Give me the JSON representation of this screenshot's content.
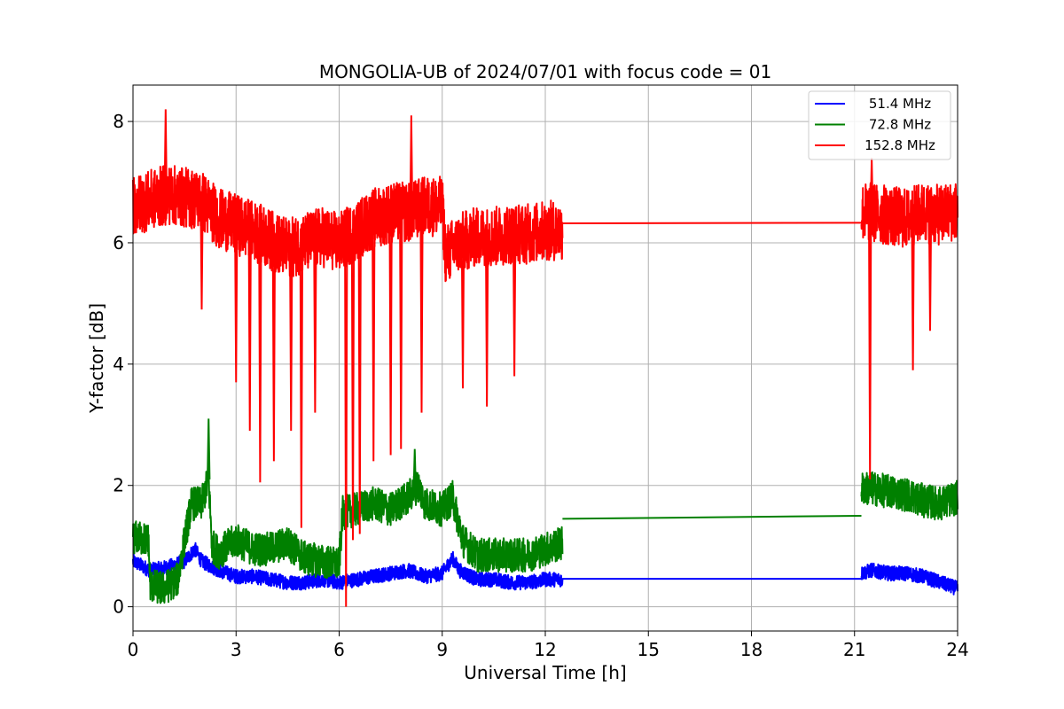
{
  "chart_data": {
    "type": "line",
    "title": "MONGOLIA-UB of 2024/07/01 with focus code = 01",
    "xlabel": "Universal Time [h]",
    "ylabel": "Y-factor [dB]",
    "xlim": [
      0,
      24
    ],
    "ylim": [
      -0.4,
      8.6
    ],
    "xticks": [
      0,
      3,
      6,
      9,
      12,
      15,
      18,
      21,
      24
    ],
    "yticks": [
      0,
      2,
      4,
      6,
      8
    ],
    "grid": true,
    "legend_position": "top-right",
    "series": [
      {
        "name": "51.4 MHz",
        "color": "#0000ff",
        "segments": [
          {
            "x": [
              0,
              0.5,
              1,
              1.5,
              1.8,
              2,
              2.5,
              3,
              3.5,
              4,
              4.5,
              5,
              5.5,
              6,
              6.5,
              7,
              7.5,
              8,
              8.5,
              9,
              9.3,
              9.5,
              10,
              10.5,
              11,
              11.5,
              12,
              12.5
            ],
            "y": [
              0.75,
              0.6,
              0.65,
              0.75,
              0.95,
              0.75,
              0.6,
              0.5,
              0.5,
              0.45,
              0.4,
              0.4,
              0.45,
              0.4,
              0.45,
              0.5,
              0.55,
              0.6,
              0.5,
              0.55,
              0.8,
              0.6,
              0.45,
              0.45,
              0.4,
              0.4,
              0.45,
              0.45
            ]
          },
          {
            "x": [
              12.5,
              21.2
            ],
            "y": [
              0.46,
              0.46
            ]
          },
          {
            "x": [
              21.2,
              21.5,
              22,
              22.5,
              23,
              23.5,
              24
            ],
            "y": [
              0.55,
              0.6,
              0.55,
              0.55,
              0.5,
              0.4,
              0.3
            ]
          }
        ],
        "noise": 0.12
      },
      {
        "name": "72.8 MHz",
        "color": "#008000",
        "segments": [
          {
            "x": [
              0,
              0.45,
              0.5,
              0.9,
              1.3,
              1.5,
              1.7,
              2.0,
              2.2,
              2.3,
              2.5,
              3,
              3.5,
              4,
              4.5,
              5,
              5.5,
              6,
              6.1,
              6.5,
              7,
              7.5,
              8,
              8.3,
              8.5,
              9,
              9.3,
              9.6,
              10,
              10.5,
              11,
              11.5,
              12,
              12.5
            ],
            "y": [
              1.15,
              1.1,
              0.35,
              0.3,
              0.45,
              1.1,
              1.7,
              1.7,
              2.1,
              1.0,
              0.9,
              1.1,
              0.95,
              0.95,
              1.05,
              0.8,
              0.75,
              0.7,
              1.55,
              1.6,
              1.7,
              1.6,
              1.8,
              2.0,
              1.7,
              1.6,
              1.8,
              1.1,
              0.85,
              0.85,
              0.85,
              0.85,
              0.95,
              1.05
            ]
          },
          {
            "x": [
              12.5,
              21.2
            ],
            "y": [
              1.45,
              1.5
            ]
          },
          {
            "x": [
              21.2,
              21.5,
              22,
              22.5,
              23,
              23.5,
              24
            ],
            "y": [
              1.95,
              1.95,
              1.9,
              1.85,
              1.75,
              1.7,
              1.8
            ]
          }
        ],
        "noise": 0.28,
        "spikes": [
          {
            "x": 2.2,
            "y": 3.1
          },
          {
            "x": 8.2,
            "y": 2.6
          },
          {
            "x": 0.8,
            "y": 0.05
          }
        ]
      },
      {
        "name": "152.8 MHz",
        "color": "#ff0000",
        "segments": [
          {
            "x": [
              0,
              0.5,
              1,
              1.5,
              2,
              2.5,
              3,
              3.5,
              4,
              4.5,
              5,
              5.5,
              6,
              6.5,
              7,
              7.5,
              8,
              8.5,
              9,
              9.1,
              9.5,
              10,
              10.5,
              11,
              11.5,
              12,
              12.5
            ],
            "y": [
              6.6,
              6.7,
              6.8,
              6.75,
              6.7,
              6.4,
              6.3,
              6.2,
              6.05,
              5.9,
              6.0,
              6.1,
              6.0,
              6.2,
              6.4,
              6.5,
              6.5,
              6.6,
              6.6,
              5.8,
              6.0,
              6.1,
              6.1,
              6.15,
              6.15,
              6.2,
              6.2
            ]
          },
          {
            "x": [
              12.5,
              21.2
            ],
            "y": [
              6.32,
              6.33
            ]
          },
          {
            "x": [
              21.2,
              21.5,
              22,
              22.5,
              23,
              23.5,
              24
            ],
            "y": [
              6.5,
              6.5,
              6.45,
              6.4,
              6.5,
              6.45,
              6.55
            ]
          }
        ],
        "noise": 0.5,
        "spikes": [
          {
            "x": 0.95,
            "y": 8.2
          },
          {
            "x": 2.0,
            "y": 4.9
          },
          {
            "x": 3.0,
            "y": 3.7
          },
          {
            "x": 3.4,
            "y": 2.9
          },
          {
            "x": 3.7,
            "y": 2.05
          },
          {
            "x": 4.1,
            "y": 2.4
          },
          {
            "x": 4.6,
            "y": 2.9
          },
          {
            "x": 4.9,
            "y": 1.3
          },
          {
            "x": 5.3,
            "y": 3.2
          },
          {
            "x": 6.2,
            "y": 0.0
          },
          {
            "x": 6.4,
            "y": 1.1
          },
          {
            "x": 6.6,
            "y": 1.2
          },
          {
            "x": 7.0,
            "y": 2.4
          },
          {
            "x": 7.5,
            "y": 2.5
          },
          {
            "x": 7.8,
            "y": 2.6
          },
          {
            "x": 8.1,
            "y": 8.1
          },
          {
            "x": 8.4,
            "y": 3.2
          },
          {
            "x": 9.6,
            "y": 3.6
          },
          {
            "x": 10.3,
            "y": 3.3
          },
          {
            "x": 11.1,
            "y": 3.8
          },
          {
            "x": 21.45,
            "y": 2.1
          },
          {
            "x": 21.5,
            "y": 7.4
          },
          {
            "x": 22.7,
            "y": 3.9
          },
          {
            "x": 23.2,
            "y": 4.55
          }
        ]
      }
    ]
  }
}
